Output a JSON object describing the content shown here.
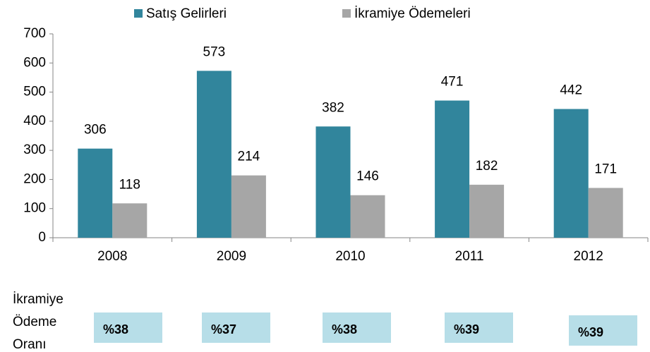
{
  "chart_data": {
    "type": "bar",
    "categories": [
      "2008",
      "2009",
      "2010",
      "2011",
      "2012"
    ],
    "series": [
      {
        "name": "Satış Gelirleri",
        "color": "#31859c",
        "values": [
          306,
          573,
          382,
          471,
          442
        ]
      },
      {
        "name": "İkramiye Ödemeleri",
        "color": "#a6a6a6",
        "values": [
          118,
          214,
          146,
          182,
          171
        ]
      }
    ],
    "ylim": [
      0,
      700
    ],
    "yticks": [
      0,
      100,
      200,
      300,
      400,
      500,
      600,
      700
    ],
    "grid": false,
    "legend": "top"
  },
  "ratio_row": {
    "label": [
      "İkramiye",
      "Ödeme",
      "Oranı"
    ],
    "values": [
      "%38",
      "%37",
      "%38",
      "%39",
      "%39"
    ]
  }
}
